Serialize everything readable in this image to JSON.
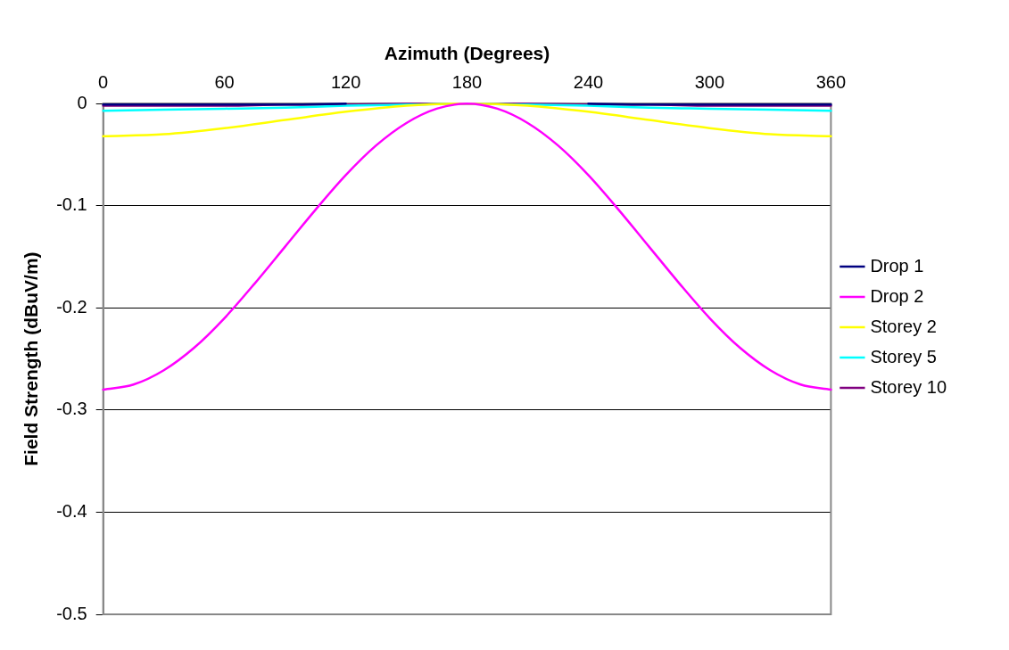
{
  "chart_data": {
    "type": "line",
    "xlabel": "Azimuth (Degrees)",
    "ylabel": "Field Strength (dBuV/m)",
    "xlim": [
      0,
      360
    ],
    "xticks": [
      0,
      60,
      120,
      180,
      240,
      300,
      360
    ],
    "ylim": [
      -0.5,
      0
    ],
    "yticks": [
      -0.5,
      -0.4,
      -0.3,
      -0.2,
      -0.1,
      0
    ],
    "grid": "y",
    "legend": "right",
    "marker": "none",
    "line_style": "solid",
    "series": [
      {
        "name": "Drop 1",
        "color": "#000080",
        "x": [
          0,
          30,
          60,
          90,
          120,
          150,
          180,
          210,
          240,
          270,
          300,
          330,
          360
        ],
        "values": [
          -0.001,
          -0.001,
          -0.001,
          -0.001,
          0,
          null,
          null,
          null,
          0,
          -0.001,
          -0.001,
          -0.001,
          -0.001
        ]
      },
      {
        "name": "Drop 2",
        "color": "#ff00ff",
        "x": [
          0,
          15,
          30,
          45,
          60,
          75,
          90,
          105,
          120,
          135,
          150,
          165,
          180,
          195,
          210,
          225,
          240,
          255,
          270,
          285,
          300,
          315,
          330,
          345,
          360
        ],
        "values": [
          -0.28,
          -0.275,
          -0.261,
          -0.239,
          -0.21,
          -0.176,
          -0.14,
          -0.104,
          -0.07,
          -0.041,
          -0.019,
          -0.005,
          0,
          -0.005,
          -0.019,
          -0.041,
          -0.07,
          -0.104,
          -0.14,
          -0.176,
          -0.21,
          -0.239,
          -0.261,
          -0.275,
          -0.28
        ]
      },
      {
        "name": "Storey 2",
        "color": "#ffff00",
        "x": [
          0,
          30,
          60,
          90,
          120,
          150,
          180,
          210,
          240,
          270,
          300,
          330,
          360
        ],
        "values": [
          -0.032,
          -0.03,
          -0.024,
          -0.016,
          -0.008,
          -0.002,
          0,
          -0.002,
          -0.008,
          -0.016,
          -0.024,
          -0.03,
          -0.032
        ]
      },
      {
        "name": "Storey 5",
        "color": "#00ffff",
        "x": [
          0,
          30,
          60,
          90,
          120,
          150,
          180,
          210,
          240,
          270,
          300,
          330,
          360
        ],
        "values": [
          -0.007,
          -0.006,
          -0.005,
          -0.004,
          -0.002,
          -0.001,
          0,
          -0.001,
          -0.002,
          -0.004,
          -0.005,
          -0.006,
          -0.007
        ]
      },
      {
        "name": "Storey 10",
        "color": "#800080",
        "x": [
          0,
          30,
          60,
          90,
          120,
          150,
          180,
          210,
          240,
          270,
          300,
          330,
          360
        ],
        "values": [
          -0.002,
          -0.002,
          -0.002,
          -0.001,
          -0.001,
          0,
          0,
          0,
          -0.001,
          -0.001,
          -0.002,
          -0.002,
          -0.002
        ]
      }
    ]
  }
}
